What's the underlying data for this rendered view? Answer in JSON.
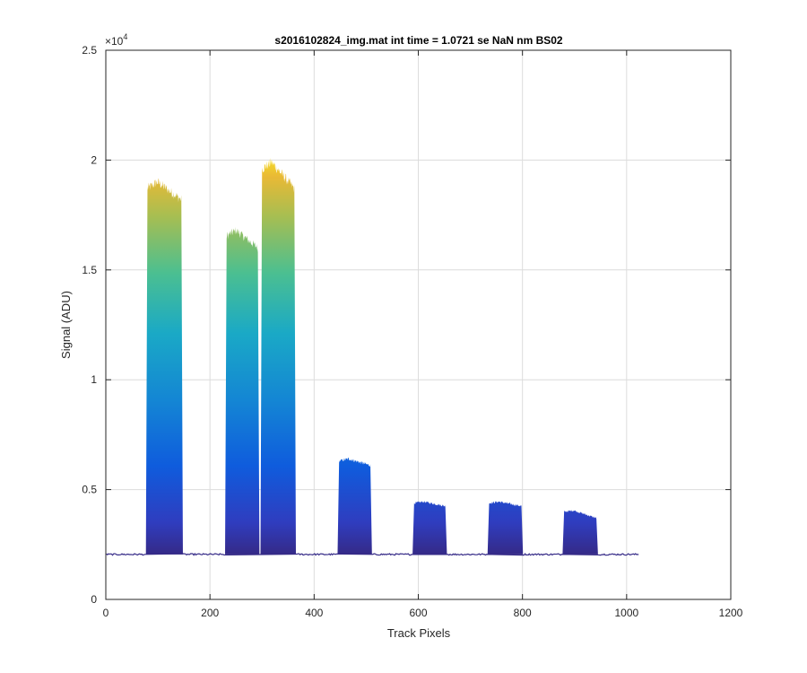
{
  "chart_data": {
    "type": "area",
    "title": "s2016102824_img.mat int time = 1.0721 se  NaN nm BS02",
    "xlabel": "Track Pixels",
    "ylabel": "Signal (ADU)",
    "xlim": [
      0,
      1200
    ],
    "ylim": [
      0,
      25000
    ],
    "xticks": [
      0,
      200,
      400,
      600,
      800,
      1000,
      1200
    ],
    "xtick_labels": [
      "0",
      "200",
      "400",
      "600",
      "800",
      "1000",
      "1200"
    ],
    "yticks": [
      0,
      5000,
      10000,
      15000,
      20000,
      25000
    ],
    "ytick_labels": [
      "0",
      "0.5",
      "1",
      "1.5",
      "2",
      "2.5"
    ],
    "y_exponent_label": "×10",
    "y_exponent_power": "4",
    "grid": true,
    "baseline": 2050,
    "x_data_range": [
      1,
      1024
    ],
    "colormap": "parula",
    "colors": {
      "low": "#352a87",
      "mid_low": "#0f5cdd",
      "mid": "#1aa3d4",
      "mid_high": "#4bbf91",
      "high": "#d8ba31",
      "top": "#f9e81f"
    },
    "series": [
      {
        "x_start": 80,
        "x_end": 145,
        "peak": 19000,
        "end_level": 18200
      },
      {
        "x_start": 232,
        "x_end": 292,
        "peak": 16800,
        "end_level": 16000
      },
      {
        "x_start": 300,
        "x_end": 362,
        "peak": 19900,
        "end_level": 18700
      },
      {
        "x_start": 448,
        "x_end": 508,
        "peak": 6400,
        "end_level": 6100
      },
      {
        "x_start": 592,
        "x_end": 652,
        "peak": 4450,
        "end_level": 4250
      },
      {
        "x_start": 736,
        "x_end": 798,
        "peak": 4450,
        "end_level": 4250
      },
      {
        "x_start": 880,
        "x_end": 942,
        "peak": 4050,
        "end_level": 3700
      }
    ]
  }
}
